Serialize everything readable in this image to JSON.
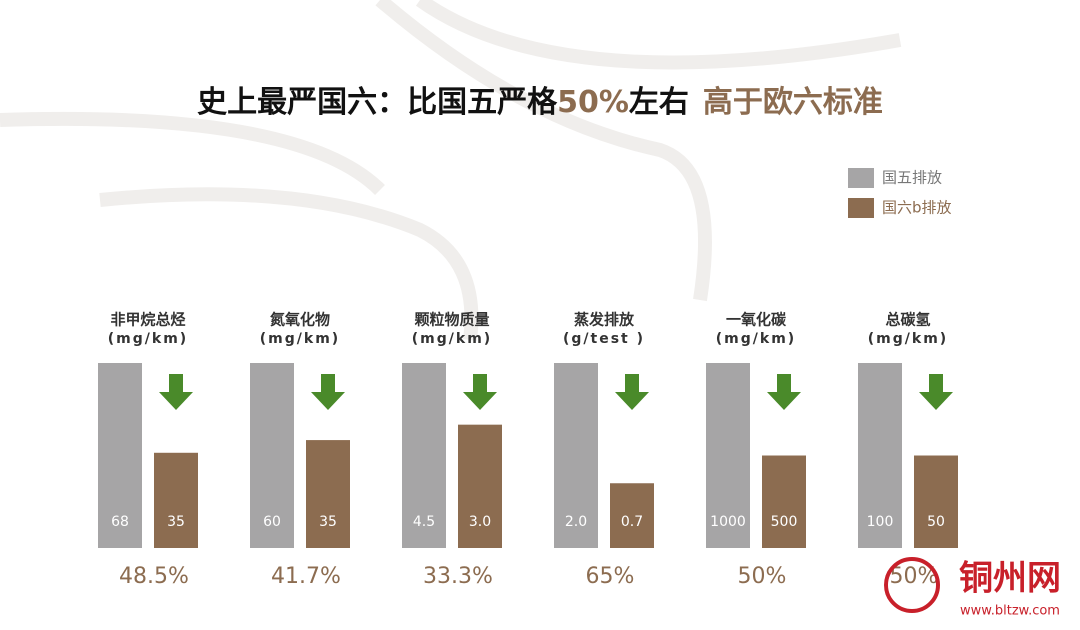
{
  "chart_data": {
    "type": "bar",
    "title": {
      "part1": "史上最严国六：比国五严格",
      "part2": "50%",
      "part3": "左右",
      "part4": "高于欧六标准"
    },
    "series": [
      {
        "name": "国五排放",
        "color": "#a6a5a6"
      },
      {
        "name": "国六b排放",
        "color": "#8c6c50"
      }
    ],
    "groups": [
      {
        "label": "非甲烷总烃",
        "unit": "(mg/km)",
        "values": [
          68,
          35
        ],
        "value_labels": [
          "68",
          "35"
        ],
        "reduction": "48.5%"
      },
      {
        "label": "氮氧化物",
        "unit": "(mg/km)",
        "values": [
          60,
          35
        ],
        "value_labels": [
          "60",
          "35"
        ],
        "reduction": "41.7%"
      },
      {
        "label": "颗粒物质量",
        "unit": "(mg/km)",
        "values": [
          4.5,
          3.0
        ],
        "value_labels": [
          "4.5",
          "3.0"
        ],
        "reduction": "33.3%"
      },
      {
        "label": "蒸发排放",
        "unit": "(g/test )",
        "values": [
          2.0,
          0.7
        ],
        "value_labels": [
          "2.0",
          "0.7"
        ],
        "reduction": "65%"
      },
      {
        "label": "一氧化碳",
        "unit": "(mg/km)",
        "values": [
          1000,
          500
        ],
        "value_labels": [
          "1000",
          "500"
        ],
        "reduction": "50%"
      },
      {
        "label": "总碳氢",
        "unit": "(mg/km)",
        "values": [
          100,
          50
        ],
        "value_labels": [
          "100",
          "50"
        ],
        "reduction": "50%"
      }
    ],
    "watermark": {
      "name": "铜州网",
      "url": "www.bltzw.com"
    }
  }
}
